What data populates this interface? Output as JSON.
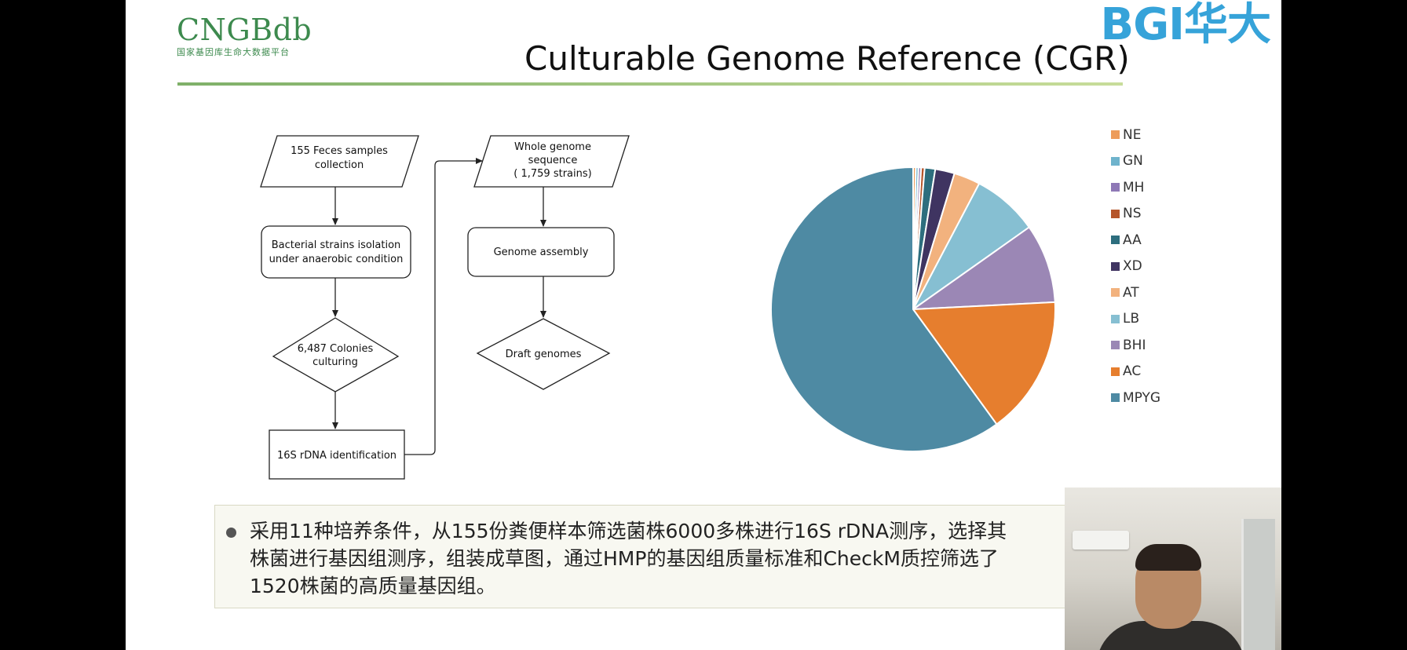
{
  "header": {
    "logo_left": "CNGBdb",
    "logo_left_sub": "国家基因库生命大数据平台",
    "logo_right": "BGI华大",
    "title": "Culturable Genome Reference (CGR)"
  },
  "flowchart": {
    "feces": "155 Feces samples collection",
    "isolation_line1": "Bacterial strains isolation",
    "isolation_line2": "under anaerobic condition",
    "colonies_line1": "6,487 Colonies",
    "colonies_line2": "culturing",
    "identification": "16S rDNA identification",
    "wgs_line1": "Whole genome",
    "wgs_line2": "sequence",
    "wgs_line3": "( 1,759 strains)",
    "assembly": "Genome assembly",
    "draft": "Draft genomes"
  },
  "chart_data": {
    "type": "pie",
    "legend_position": "right",
    "slices": [
      {
        "label": "NE",
        "value": 0.3,
        "color": "#ED9C5A"
      },
      {
        "label": "GN",
        "value": 0.3,
        "color": "#6FB3CC"
      },
      {
        "label": "MH",
        "value": 0.3,
        "color": "#8E78B6"
      },
      {
        "label": "NS",
        "value": 0.4,
        "color": "#B5552A"
      },
      {
        "label": "AA",
        "value": 1.2,
        "color": "#2D6E7E"
      },
      {
        "label": "XD",
        "value": 2.2,
        "color": "#3F3461"
      },
      {
        "label": "AT",
        "value": 3.0,
        "color": "#F2B27E"
      },
      {
        "label": "LB",
        "value": 7.5,
        "color": "#86BFD2"
      },
      {
        "label": "BHI",
        "value": 9.0,
        "color": "#9B87B5"
      },
      {
        "label": "AC",
        "value": 15.8,
        "color": "#E67E2E"
      },
      {
        "label": "MPYG",
        "value": 60.0,
        "color": "#4E8AA3"
      }
    ]
  },
  "note": {
    "line1": "采用11种培养条件，从155份粪便样本筛选菌株6000多株进行16S rDNA测序，选择其",
    "line2": "株菌进行基因组测序，组装成草图，通过HMP的基因组质量标准和CheckM质控筛选了",
    "line3": "1520株菌的高质量基因组。"
  }
}
